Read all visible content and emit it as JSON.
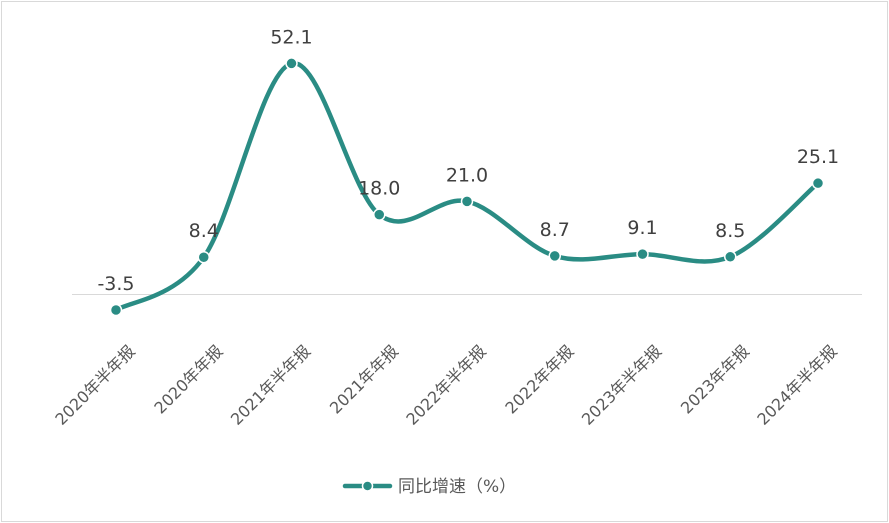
{
  "chart_data": {
    "type": "line",
    "smooth": true,
    "categories": [
      "2020年半年报",
      "2020年年报",
      "2021年半年报",
      "2021年年报",
      "2022年半年报",
      "2022年年报",
      "2023年半年报",
      "2023年年报",
      "2024年半年报"
    ],
    "series": [
      {
        "name": "同比增速（%）",
        "values": [
          -3.5,
          8.4,
          52.1,
          18.0,
          21.0,
          8.7,
          9.1,
          8.5,
          25.1
        ],
        "labels": [
          "-3.5",
          "8.4",
          "52.1",
          "18.0",
          "21.0",
          "8.7",
          "9.1",
          "8.5",
          "25.1"
        ],
        "color": "#2a8c84"
      }
    ],
    "title": "",
    "xlabel": "",
    "ylabel": "",
    "ylim": [
      -10,
      55
    ],
    "grid": false,
    "axis_line_color": "#d9d9d9",
    "legend_position": "bottom"
  }
}
